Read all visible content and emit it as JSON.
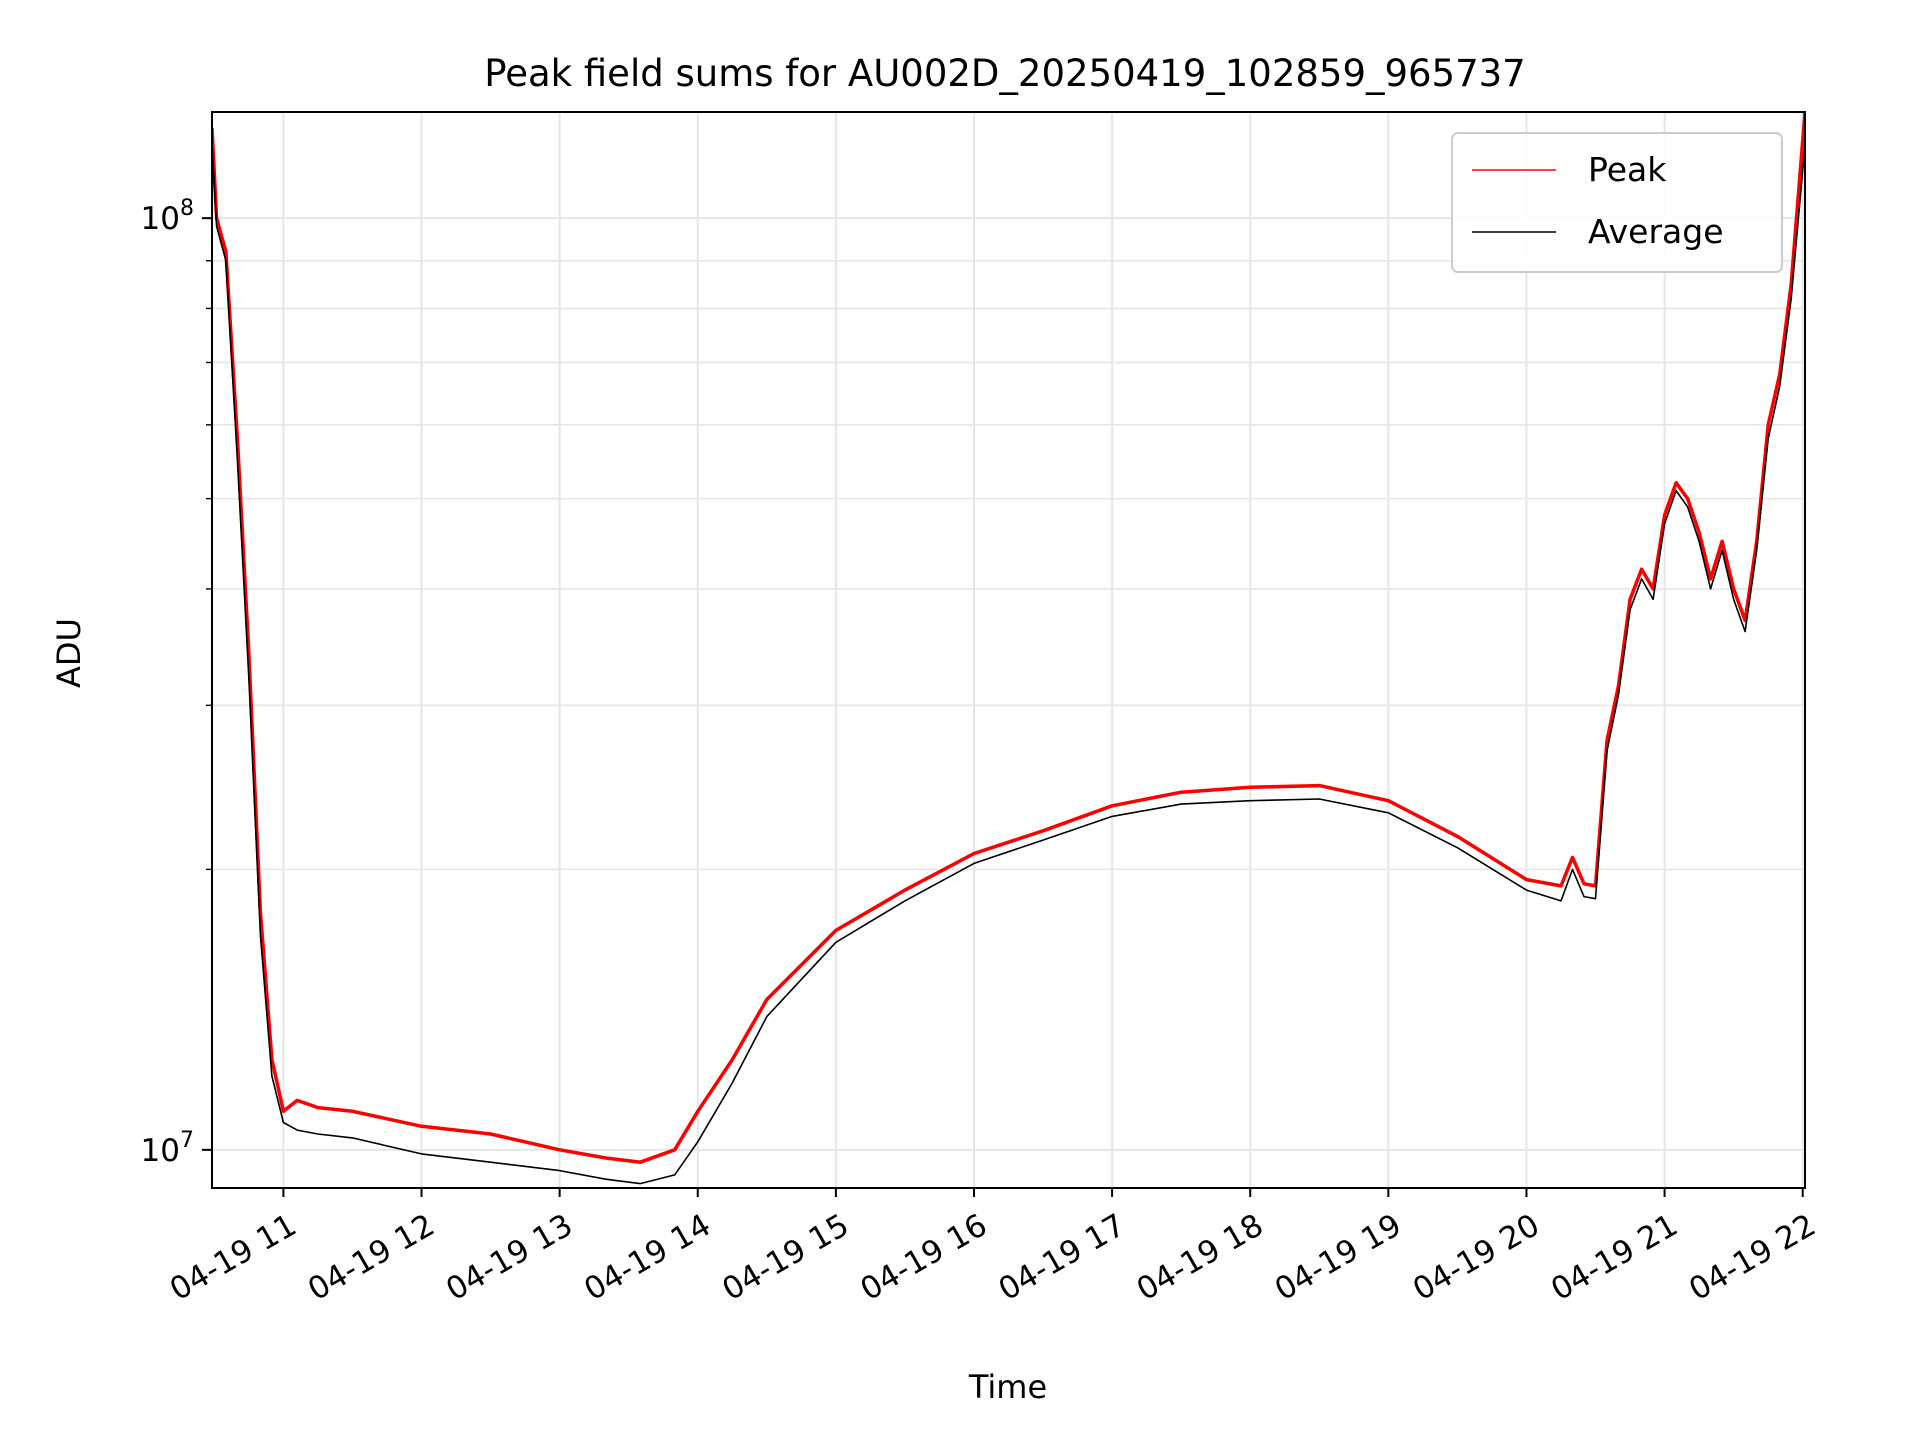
{
  "chart_data": {
    "type": "line",
    "title": "Peak field sums for AU002D_20250419_102859_965737",
    "xlabel": "Time",
    "ylabel": "ADU",
    "y_scale": "log",
    "ylim": [
      9100000,
      130000000
    ],
    "xlim": [
      "2025-04-19 10:28:59",
      "2025-04-19 22:01:00"
    ],
    "x_ticks": [
      "2025-04-19 11:00",
      "2025-04-19 12:00",
      "2025-04-19 13:00",
      "2025-04-19 14:00",
      "2025-04-19 15:00",
      "2025-04-19 16:00",
      "2025-04-19 17:00",
      "2025-04-19 18:00",
      "2025-04-19 19:00",
      "2025-04-19 20:00",
      "2025-04-19 21:00",
      "2025-04-19 22:00"
    ],
    "x_tick_labels": [
      "04-19 11",
      "04-19 12",
      "04-19 13",
      "04-19 14",
      "04-19 15",
      "04-19 16",
      "04-19 17",
      "04-19 18",
      "04-19 19",
      "04-19 20",
      "04-19 21",
      "04-19 22"
    ],
    "y_ticks": [
      10000000,
      100000000
    ],
    "y_tick_base": "10",
    "y_tick_exponents": [
      "7",
      "8"
    ],
    "grid": true,
    "legend": {
      "position": "top-right",
      "entries": [
        "Peak",
        "Average"
      ]
    },
    "colors": {
      "Peak": "#ff0000",
      "Average": "#000000"
    },
    "series": [
      {
        "name": "Peak",
        "x": [
          "2025-04-19 10:29",
          "2025-04-19 10:31",
          "2025-04-19 10:35",
          "2025-04-19 10:40",
          "2025-04-19 10:45",
          "2025-04-19 10:50",
          "2025-04-19 10:55",
          "2025-04-19 11:00",
          "2025-04-19 11:06",
          "2025-04-19 11:15",
          "2025-04-19 11:30",
          "2025-04-19 12:00",
          "2025-04-19 12:30",
          "2025-04-19 13:00",
          "2025-04-19 13:20",
          "2025-04-19 13:35",
          "2025-04-19 13:50",
          "2025-04-19 14:00",
          "2025-04-19 14:15",
          "2025-04-19 14:30",
          "2025-04-19 15:00",
          "2025-04-19 15:30",
          "2025-04-19 16:00",
          "2025-04-19 16:30",
          "2025-04-19 17:00",
          "2025-04-19 17:30",
          "2025-04-19 18:00",
          "2025-04-19 18:30",
          "2025-04-19 19:00",
          "2025-04-19 19:30",
          "2025-04-19 20:00",
          "2025-04-19 20:15",
          "2025-04-19 20:20",
          "2025-04-19 20:25",
          "2025-04-19 20:30",
          "2025-04-19 20:35",
          "2025-04-19 20:40",
          "2025-04-19 20:45",
          "2025-04-19 20:50",
          "2025-04-19 20:55",
          "2025-04-19 21:00",
          "2025-04-19 21:05",
          "2025-04-19 21:10",
          "2025-04-19 21:15",
          "2025-04-19 21:20",
          "2025-04-19 21:25",
          "2025-04-19 21:30",
          "2025-04-19 21:35",
          "2025-04-19 21:40",
          "2025-04-19 21:45",
          "2025-04-19 21:50",
          "2025-04-19 21:55",
          "2025-04-19 22:01"
        ],
        "values": [
          125000000,
          100000000,
          92000000,
          58000000,
          34000000,
          18000000,
          12500000,
          11000000,
          11300000,
          11100000,
          11000000,
          10600000,
          10400000,
          10000000,
          9800000,
          9700000,
          10000000,
          11000000,
          12500000,
          14500000,
          17200000,
          19000000,
          20800000,
          22000000,
          23400000,
          24200000,
          24500000,
          24600000,
          23700000,
          21700000,
          19500000,
          19200000,
          20600000,
          19300000,
          19200000,
          27500000,
          31500000,
          39000000,
          42000000,
          40000000,
          48000000,
          52000000,
          50000000,
          46000000,
          41000000,
          45000000,
          40000000,
          37000000,
          45000000,
          60000000,
          68000000,
          85000000,
          130000000
        ]
      },
      {
        "name": "Average",
        "x": [
          "2025-04-19 10:29",
          "2025-04-19 10:31",
          "2025-04-19 10:35",
          "2025-04-19 10:40",
          "2025-04-19 10:45",
          "2025-04-19 10:50",
          "2025-04-19 10:55",
          "2025-04-19 11:00",
          "2025-04-19 11:06",
          "2025-04-19 11:15",
          "2025-04-19 11:30",
          "2025-04-19 12:00",
          "2025-04-19 12:30",
          "2025-04-19 13:00",
          "2025-04-19 13:20",
          "2025-04-19 13:35",
          "2025-04-19 13:50",
          "2025-04-19 14:00",
          "2025-04-19 14:15",
          "2025-04-19 14:30",
          "2025-04-19 15:00",
          "2025-04-19 15:30",
          "2025-04-19 16:00",
          "2025-04-19 16:30",
          "2025-04-19 17:00",
          "2025-04-19 17:30",
          "2025-04-19 18:00",
          "2025-04-19 18:30",
          "2025-04-19 19:00",
          "2025-04-19 19:30",
          "2025-04-19 20:00",
          "2025-04-19 20:15",
          "2025-04-19 20:20",
          "2025-04-19 20:25",
          "2025-04-19 20:30",
          "2025-04-19 20:35",
          "2025-04-19 20:40",
          "2025-04-19 20:45",
          "2025-04-19 20:50",
          "2025-04-19 20:55",
          "2025-04-19 21:00",
          "2025-04-19 21:05",
          "2025-04-19 21:10",
          "2025-04-19 21:15",
          "2025-04-19 21:20",
          "2025-04-19 21:25",
          "2025-04-19 21:30",
          "2025-04-19 21:35",
          "2025-04-19 21:40",
          "2025-04-19 21:45",
          "2025-04-19 21:50",
          "2025-04-19 21:55",
          "2025-04-19 22:01"
        ],
        "values": [
          120000000,
          98000000,
          90000000,
          55000000,
          32000000,
          17000000,
          12000000,
          10700000,
          10500000,
          10400000,
          10300000,
          9900000,
          9700000,
          9500000,
          9300000,
          9200000,
          9400000,
          10200000,
          11800000,
          13900000,
          16700000,
          18500000,
          20300000,
          21500000,
          22800000,
          23500000,
          23700000,
          23800000,
          23000000,
          21100000,
          19000000,
          18500000,
          20000000,
          18700000,
          18600000,
          26800000,
          30800000,
          38000000,
          41000000,
          39000000,
          47000000,
          51000000,
          49000000,
          45000000,
          40000000,
          44000000,
          39000000,
          36000000,
          44000000,
          58000000,
          66000000,
          82000000,
          120000000
        ]
      }
    ]
  }
}
